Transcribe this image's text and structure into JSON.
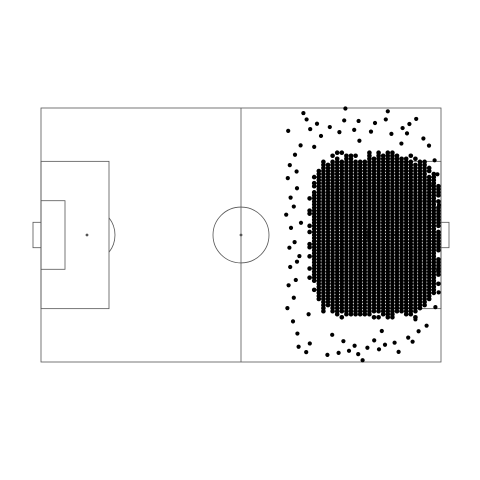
{
  "chart_data": {
    "type": "scatter",
    "title": "",
    "xlabel": "",
    "ylabel": "",
    "grid": false,
    "legend": "none",
    "background": "pitch",
    "colors": {
      "marker": "#000000",
      "lines": "#555555",
      "background": "#ffffff"
    },
    "xlim": [
      0,
      100
    ],
    "ylim": [
      0,
      100
    ],
    "pitch": {
      "length": 100,
      "width": 100,
      "halfway_x": 50,
      "centre_spot": [
        50,
        50
      ],
      "centre_circle_radius_x": 7,
      "centre_circle_radius_y": 11,
      "left_penalty_area": {
        "x": [
          0,
          17
        ],
        "y": [
          21,
          79
        ]
      },
      "left_six_yard_box": {
        "x": [
          0,
          6
        ],
        "y": [
          36.5,
          63.5
        ]
      },
      "left_goal": {
        "x": [
          -2,
          0
        ],
        "y": [
          45,
          55
        ]
      },
      "left_penalty_spot": [
        11.5,
        50
      ],
      "right_penalty_area": {
        "x": [
          83,
          100
        ],
        "y": [
          21,
          79
        ]
      },
      "right_six_yard_box": {
        "x": [
          94,
          100
        ],
        "y": [
          36.5,
          63.5
        ]
      },
      "right_goal": {
        "x": [
          100,
          102
        ],
        "y": [
          45,
          55
        ]
      },
      "right_penalty_spot": [
        88.5,
        50
      ]
    },
    "dense_cluster": {
      "shape": "filled region of many overlapping points",
      "x_range": [
        66,
        100
      ],
      "y_range": [
        14,
        85
      ],
      "core_x_range": [
        68,
        99
      ],
      "core_y_range": [
        20,
        81
      ],
      "grid_step": [
        1.15,
        1.2
      ]
    },
    "series": [
      {
        "points": [
          [
            66.3,
            96.1
          ],
          [
            64.4,
            94.0
          ],
          [
            67.2,
            92.7
          ],
          [
            71.6,
            97.2
          ],
          [
            74.4,
            96.4
          ],
          [
            75.6,
            91.8
          ],
          [
            77.0,
            95.6
          ],
          [
            78.4,
            93.6
          ],
          [
            79.3,
            96.9
          ],
          [
            80.4,
            99.3
          ],
          [
            81.6,
            94.4
          ],
          [
            83.3,
            91.5
          ],
          [
            84.5,
            95.0
          ],
          [
            86.0,
            93.2
          ],
          [
            88.4,
            92.4
          ],
          [
            89.4,
            96.0
          ],
          [
            91.8,
            90.4
          ],
          [
            92.9,
            92.0
          ],
          [
            94.4,
            87.9
          ],
          [
            93.6,
            83.2
          ],
          [
            96.4,
            85.7
          ],
          [
            98.6,
            78.4
          ],
          [
            99.4,
            72.6
          ],
          [
            99.3,
            63.9
          ],
          [
            64.1,
            88.8
          ],
          [
            63.0,
            84.0
          ],
          [
            61.6,
            78.8
          ],
          [
            63.2,
            74.7
          ],
          [
            61.9,
            69.8
          ],
          [
            63.7,
            67.7
          ],
          [
            62.3,
            62.6
          ],
          [
            64.0,
            60.5
          ],
          [
            62.1,
            55.0
          ],
          [
            63.4,
            52.8
          ],
          [
            62.5,
            47.2
          ],
          [
            61.3,
            42.0
          ],
          [
            63.2,
            38.8
          ],
          [
            62.4,
            35.3
          ],
          [
            64.0,
            31.6
          ],
          [
            61.7,
            27.6
          ],
          [
            63.9,
            25.0
          ],
          [
            62.2,
            22.5
          ],
          [
            63.5,
            18.4
          ],
          [
            64.9,
            14.7
          ],
          [
            61.8,
            9.0
          ],
          [
            67.3,
            8.3
          ],
          [
            66.4,
            4.5
          ],
          [
            69.0,
            6.2
          ],
          [
            70.0,
            11.0
          ],
          [
            72.2,
            7.5
          ],
          [
            74.6,
            9.5
          ],
          [
            75.8,
            4.9
          ],
          [
            78.3,
            8.6
          ],
          [
            79.4,
            5.1
          ],
          [
            82.5,
            9.3
          ],
          [
            83.5,
            5.9
          ],
          [
            86.2,
            4.5
          ],
          [
            87.6,
            10.2
          ],
          [
            90.4,
            7.9
          ],
          [
            91.5,
            10.0
          ],
          [
            92.1,
            6.3
          ],
          [
            93.8,
            4.3
          ],
          [
            95.6,
            12.0
          ],
          [
            97.0,
            14.8
          ],
          [
            98.4,
            20.6
          ],
          [
            99.1,
            26.1
          ],
          [
            99.5,
            38.2
          ],
          [
            99.4,
            50.1
          ],
          [
            65.6,
            2.0
          ],
          [
            76.1,
            0.2
          ],
          [
            86.7,
            1.3
          ],
          [
            72.8,
            89.3
          ],
          [
            85.2,
            87.8
          ],
          [
            66.9,
            81.2
          ],
          [
            68.3,
            15.3
          ],
          [
            90.1,
            14.0
          ],
          [
            79.6,
            12.9
          ],
          [
            65.0,
            45.2
          ],
          [
            64.6,
            58.3
          ],
          [
            97.2,
            30.5
          ]
        ]
      }
    ]
  }
}
